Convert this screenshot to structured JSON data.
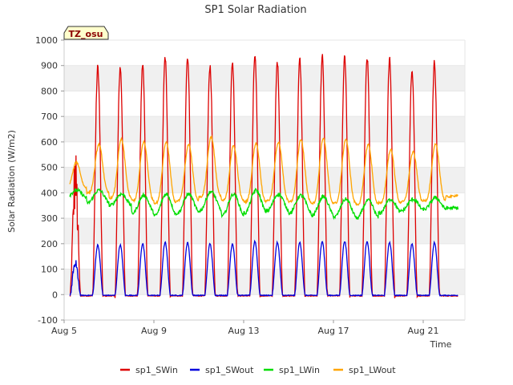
{
  "chart_data": {
    "type": "line",
    "title": "SP1 Solar Radiation",
    "xlabel": "Time",
    "ylabel": "Solar Radiation (W/m2)",
    "badge": "TZ_osu",
    "ylim": [
      -100,
      1000
    ],
    "yticks": [
      -100,
      0,
      100,
      200,
      300,
      400,
      500,
      600,
      700,
      800,
      900,
      1000
    ],
    "xlim": [
      "Aug 5",
      "Aug 23"
    ],
    "xticks": [
      "Aug 5",
      "Aug 9",
      "Aug 13",
      "Aug 17",
      "Aug 21"
    ],
    "grid": "horizontal alternating bands",
    "legend_position": "bottom",
    "day_labels": [
      "Aug 5",
      "Aug 6",
      "Aug 7",
      "Aug 8",
      "Aug 9",
      "Aug 10",
      "Aug 11",
      "Aug 12",
      "Aug 13",
      "Aug 14",
      "Aug 15",
      "Aug 16",
      "Aug 17",
      "Aug 18",
      "Aug 19",
      "Aug 20",
      "Aug 21",
      "Aug 22"
    ],
    "series": [
      {
        "name": "sp1_SWin",
        "color": "#dd0000",
        "daily_peak": [
          580,
          895,
          895,
          905,
          935,
          935,
          900,
          915,
          940,
          915,
          925,
          935,
          940,
          935,
          925,
          890,
          915,
          0
        ],
        "night_value": -5
      },
      {
        "name": "sp1_SWout",
        "color": "#0000dd",
        "daily_peak": [
          145,
          195,
          195,
          200,
          205,
          205,
          200,
          200,
          210,
          205,
          205,
          210,
          210,
          210,
          205,
          200,
          205,
          0
        ],
        "night_value": -3
      },
      {
        "name": "sp1_LWin",
        "color": "#00dd00",
        "daily_max": [
          410,
          410,
          395,
          390,
          395,
          395,
          405,
          395,
          410,
          395,
          390,
          385,
          375,
          370,
          375,
          375,
          380,
          340
        ],
        "daily_min": [
          380,
          360,
          350,
          320,
          310,
          320,
          330,
          310,
          320,
          330,
          320,
          310,
          305,
          300,
          320,
          330,
          335,
          340
        ]
      },
      {
        "name": "sp1_LWout",
        "color": "#ffa500",
        "daily_max": [
          520,
          590,
          610,
          600,
          600,
          590,
          620,
          585,
          595,
          600,
          610,
          615,
          610,
          590,
          570,
          560,
          590,
          390
        ],
        "daily_min": [
          420,
          400,
          380,
          370,
          360,
          370,
          385,
          370,
          365,
          370,
          365,
          360,
          360,
          355,
          360,
          365,
          370,
          385
        ]
      }
    ]
  }
}
